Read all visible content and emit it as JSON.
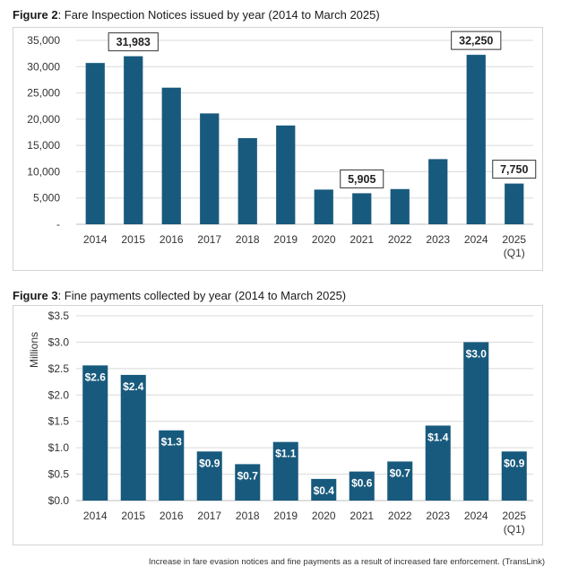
{
  "figure2": {
    "title_prefix": "Figure 2",
    "title_rest": ": Fare Inspection Notices issued by year (2014 to March 2025)"
  },
  "figure3": {
    "title_prefix": "Figure 3",
    "title_rest": ": Fine payments collected by year (2014 to March 2025)"
  },
  "caption": "Increase in fare evasion notices and fine payments as a result of increased fare enforcement. (TransLink)",
  "colors": {
    "bar": "#185a7d",
    "grid": "#d9d9d9",
    "axis": "#bfbfbf",
    "text": "#333333",
    "callout_border": "#333333"
  },
  "chart_data": [
    {
      "type": "bar",
      "categories": [
        "2014",
        "2015",
        "2016",
        "2017",
        "2018",
        "2019",
        "2020",
        "2021",
        "2022",
        "2023",
        "2024",
        "2025 (Q1)"
      ],
      "category_labels": [
        [
          "2014"
        ],
        [
          "2015"
        ],
        [
          "2016"
        ],
        [
          "2017"
        ],
        [
          "2018"
        ],
        [
          "2019"
        ],
        [
          "2020"
        ],
        [
          "2021"
        ],
        [
          "2022"
        ],
        [
          "2023"
        ],
        [
          "2024"
        ],
        [
          "2025",
          "(Q1)"
        ]
      ],
      "values": [
        30700,
        31983,
        26000,
        21100,
        16400,
        18800,
        6600,
        5905,
        6700,
        12400,
        32250,
        7750
      ],
      "y_ticks": [
        0,
        5000,
        10000,
        15000,
        20000,
        25000,
        30000,
        35000
      ],
      "y_tick_labels": [
        "-",
        "5,000",
        "10,000",
        "15,000",
        "20,000",
        "25,000",
        "30,000",
        "35,000"
      ],
      "ylim": [
        0,
        35000
      ],
      "grid": true,
      "callouts": [
        {
          "index": 1,
          "label": "31,983"
        },
        {
          "index": 7,
          "label": "5,905"
        },
        {
          "index": 10,
          "label": "32,250"
        },
        {
          "index": 11,
          "label": "7,750"
        }
      ]
    },
    {
      "type": "bar",
      "categories": [
        "2014",
        "2015",
        "2016",
        "2017",
        "2018",
        "2019",
        "2020",
        "2021",
        "2022",
        "2023",
        "2024",
        "2025 (Q1)"
      ],
      "category_labels": [
        [
          "2014"
        ],
        [
          "2015"
        ],
        [
          "2016"
        ],
        [
          "2017"
        ],
        [
          "2018"
        ],
        [
          "2019"
        ],
        [
          "2020"
        ],
        [
          "2021"
        ],
        [
          "2022"
        ],
        [
          "2023"
        ],
        [
          "2024"
        ],
        [
          "2025",
          "(Q1)"
        ]
      ],
      "values": [
        2.56,
        2.38,
        1.33,
        0.93,
        0.69,
        1.11,
        0.41,
        0.55,
        0.74,
        1.42,
        3.0,
        0.93
      ],
      "data_labels": [
        "$2.6",
        "$2.4",
        "$1.3",
        "$0.9",
        "$0.7",
        "$1.1",
        "$0.4",
        "$0.6",
        "$0.7",
        "$1.4",
        "$3.0",
        "$0.9"
      ],
      "y_ticks": [
        0,
        0.5,
        1.0,
        1.5,
        2.0,
        2.5,
        3.0,
        3.5
      ],
      "y_tick_labels": [
        "$0.0",
        "$0.5",
        "$1.0",
        "$1.5",
        "$2.0",
        "$2.5",
        "$3.0",
        "$3.5"
      ],
      "ylim": [
        0,
        3.5
      ],
      "ylabel": "Millions",
      "grid": true
    }
  ]
}
